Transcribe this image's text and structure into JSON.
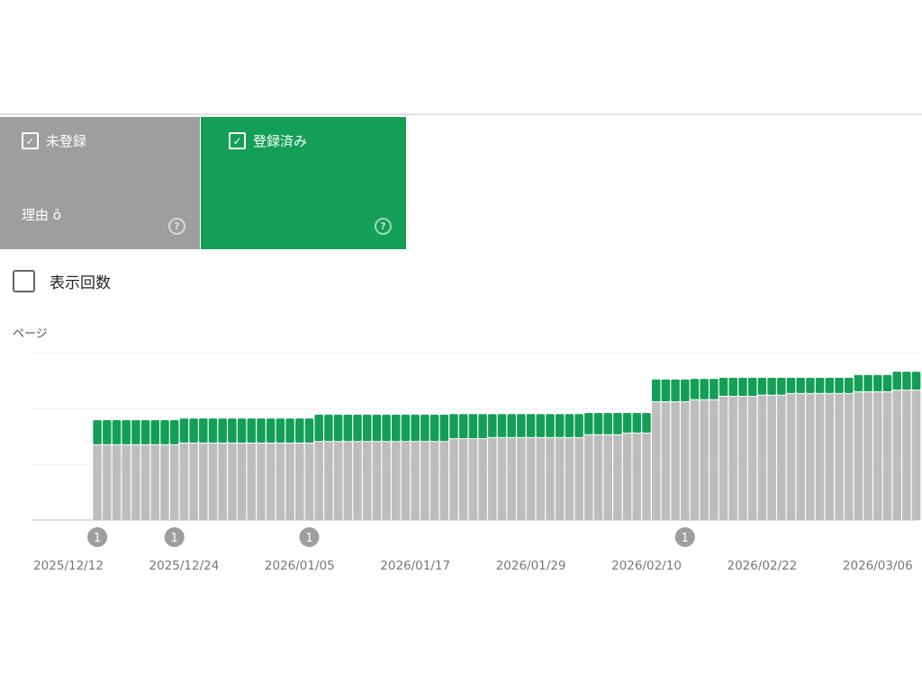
{
  "cards": [
    {
      "label": "未登録",
      "checked": true,
      "subtext": "理由 ō",
      "help_icon": "help-circle-icon",
      "color": "#9e9e9e"
    },
    {
      "label": "登録済み",
      "checked": true,
      "help_icon": "help-circle-icon",
      "color": "#139f56"
    }
  ],
  "impressions_toggle": {
    "label": "表示回数",
    "checked": false
  },
  "chart_data": {
    "type": "bar",
    "stacked": true,
    "ylabel": "ページ",
    "ylim": [
      0,
      300
    ],
    "gridlines": [
      100,
      200,
      300
    ],
    "start_date": "2025/12/15",
    "x_ticks": [
      "2025/12/12",
      "2025/12/24",
      "2026/01/05",
      "2026/01/17",
      "2026/01/29",
      "2026/02/10",
      "2026/02/22",
      "2026/03/06"
    ],
    "annotations": [
      {
        "date": "2025/12/15",
        "label": "1"
      },
      {
        "date": "2025/12/23",
        "label": "1"
      },
      {
        "date": "2026/01/06",
        "label": "1"
      },
      {
        "date": "2026/02/14",
        "label": "1"
      }
    ],
    "series": [
      {
        "name": "未登録",
        "color": "#bdbdbd",
        "values": [
          134,
          134,
          134,
          134,
          134,
          134,
          134,
          134,
          134,
          137,
          137,
          137,
          137,
          137,
          137,
          137,
          137,
          137,
          137,
          137,
          137,
          137,
          137,
          140,
          140,
          140,
          140,
          140,
          140,
          140,
          140,
          140,
          140,
          140,
          140,
          140,
          140,
          145,
          145,
          145,
          145,
          147,
          147,
          147,
          147,
          147,
          147,
          147,
          147,
          147,
          147,
          152,
          152,
          152,
          152,
          155,
          155,
          155,
          211,
          211,
          211,
          211,
          215,
          215,
          215,
          221,
          221,
          221,
          221,
          223,
          223,
          223,
          226,
          226,
          226,
          226,
          226,
          226,
          226,
          229,
          229,
          229,
          229,
          232,
          232,
          232
        ]
      },
      {
        "name": "登録済み",
        "color": "#139f56",
        "values": [
          45,
          45,
          45,
          45,
          45,
          45,
          45,
          45,
          45,
          45,
          45,
          45,
          45,
          45,
          45,
          45,
          45,
          45,
          45,
          45,
          45,
          45,
          45,
          49,
          49,
          49,
          49,
          49,
          49,
          49,
          49,
          49,
          49,
          49,
          49,
          49,
          49,
          45,
          45,
          45,
          45,
          43,
          43,
          43,
          43,
          43,
          43,
          43,
          43,
          43,
          43,
          40,
          40,
          40,
          40,
          37,
          37,
          37,
          41,
          41,
          41,
          41,
          38,
          38,
          38,
          34,
          34,
          34,
          34,
          32,
          32,
          32,
          29,
          29,
          29,
          29,
          29,
          29,
          29,
          31,
          31,
          31,
          31,
          34,
          34,
          34
        ]
      }
    ]
  }
}
